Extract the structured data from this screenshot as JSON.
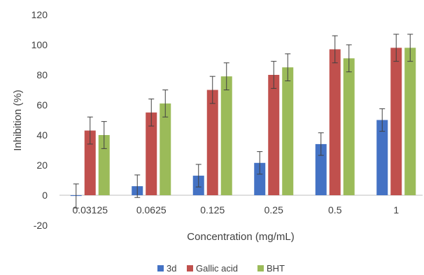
{
  "chart_data": {
    "type": "bar",
    "title": "",
    "xlabel": "Concentration (mg/mL)",
    "ylabel": "Inhibition (%)",
    "ylim": [
      -20,
      120
    ],
    "yticks": [
      -20,
      0,
      20,
      40,
      60,
      80,
      100,
      120
    ],
    "grid": false,
    "legend_position": "bottom",
    "error_bars": true,
    "categories": [
      "0.03125",
      "0.0625",
      "0.125",
      "0.25",
      "0.5",
      "1"
    ],
    "series": [
      {
        "name": "3d",
        "color": "#4472C4",
        "values": [
          -0.5,
          6,
          13,
          21.5,
          34,
          50
        ],
        "errors": [
          8,
          7.5,
          7.5,
          7.5,
          7.5,
          7.5
        ]
      },
      {
        "name": "Gallic acid",
        "color": "#C0504D",
        "values": [
          43,
          55,
          70,
          80,
          97,
          98
        ],
        "errors": [
          9,
          9,
          9,
          9,
          9,
          9
        ]
      },
      {
        "name": "BHT",
        "color": "#9BBB59",
        "values": [
          40,
          61,
          79,
          85,
          91,
          98
        ],
        "errors": [
          9,
          9,
          9,
          9,
          9,
          9
        ]
      }
    ]
  }
}
